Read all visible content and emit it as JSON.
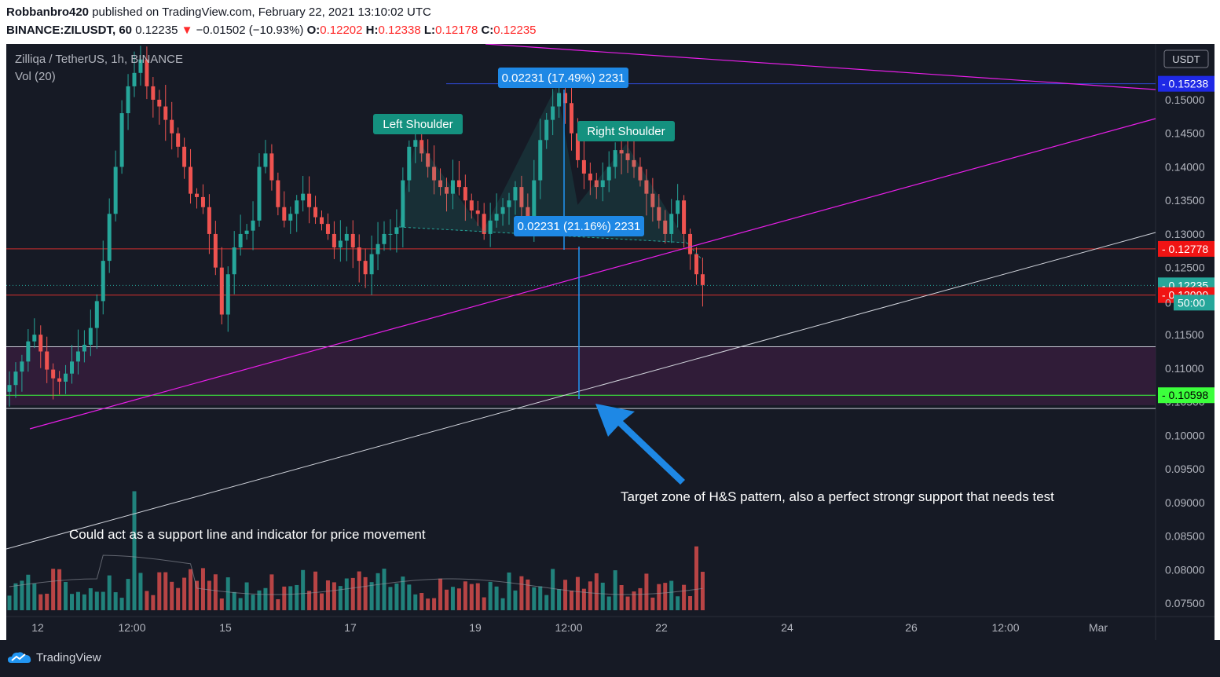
{
  "header": {
    "author": "Robbanbro420",
    "published_text": "published on TradingView.com, February 22, 2021 13:10:02 UTC",
    "symbol": "BINANCE:ZILUSDT, 60",
    "last": "0.12235",
    "change": "−0.01502 (−10.93%)",
    "o_label": "O:",
    "o": "0.12202",
    "h_label": "H:",
    "h": "0.12338",
    "l_label": "L:",
    "l": "0.12178",
    "c_label": "C:",
    "c": "0.12235"
  },
  "legend": {
    "title": "Zilliqa / TetherUS, 1h, BINANCE",
    "vol": "Vol (20)"
  },
  "axis": {
    "currency": "USDT",
    "price_ticks": [
      "0.15000",
      "0.14500",
      "0.14000",
      "0.13500",
      "0.13000",
      "0.12500",
      "0.11500",
      "0.11000",
      "0.10500",
      "0.10000",
      "0.09500",
      "0.09000",
      "0.08500",
      "0.08000",
      "0.07500"
    ],
    "time_ticks": [
      "12",
      "12:00",
      "15",
      "17",
      "19",
      "12:00",
      "22",
      "24",
      "26",
      "12:00",
      "Mar"
    ]
  },
  "badges": {
    "b15238": "0.15238",
    "b12778": "0.12778",
    "b12235": "0.12235",
    "countdown": "50:00",
    "countdown_prefix": "0",
    "b12090": "0.12090",
    "b10598": "0.10598"
  },
  "annotations": {
    "left_shoulder": "Left Shoulder",
    "right_shoulder": "Right Shoulder",
    "measure_top": "0.02231 (17.49%) 2231",
    "measure_mid": "0.02231 (21.16%) 2231",
    "target_note": "Target zone of H&S pattern, also a perfect strongr support that needs test",
    "support_note": "Could act as a support line and indicator for price movement"
  },
  "footer": {
    "brand": "TradingView"
  },
  "colors": {
    "background": "#161a25",
    "up": "#26a69a",
    "down": "#ef5350",
    "magenta": "#e91ee9",
    "zone": "#3a1d3f",
    "green_line": "#3cff3c",
    "blue_arrow": "#2196f3"
  },
  "chart_data": {
    "type": "candlestick",
    "title": "Zilliqa / TetherUS, 1h, BINANCE",
    "y_unit": "USDT",
    "ylim": [
      0.0735,
      0.1585
    ],
    "x_ticks": [
      "12",
      "12:00",
      "15",
      "17",
      "19",
      "12:00",
      "22",
      "24",
      "26",
      "12:00",
      "Mar"
    ],
    "levels": [
      0.15238,
      0.12778,
      0.12235,
      0.1209,
      0.10598
    ],
    "price_path": [
      [
        0,
        0.1075
      ],
      [
        1,
        0.1095
      ],
      [
        2,
        0.111
      ],
      [
        3,
        0.114
      ],
      [
        4,
        0.115
      ],
      [
        5,
        0.1125
      ],
      [
        6,
        0.1098
      ],
      [
        7,
        0.1085
      ],
      [
        8,
        0.108
      ],
      [
        9,
        0.1092
      ],
      [
        10,
        0.111
      ],
      [
        11,
        0.1125
      ],
      [
        12,
        0.1135
      ],
      [
        13,
        0.116
      ],
      [
        14,
        0.12
      ],
      [
        15,
        0.126
      ],
      [
        16,
        0.133
      ],
      [
        17,
        0.14
      ],
      [
        18,
        0.148
      ],
      [
        19,
        0.152
      ],
      [
        20,
        0.154
      ],
      [
        21,
        0.156
      ],
      [
        22,
        0.152
      ],
      [
        23,
        0.15
      ],
      [
        24,
        0.149
      ],
      [
        25,
        0.147
      ],
      [
        26,
        0.145
      ],
      [
        27,
        0.143
      ],
      [
        28,
        0.14
      ],
      [
        29,
        0.136
      ],
      [
        30,
        0.1355
      ],
      [
        31,
        0.134
      ],
      [
        32,
        0.13
      ],
      [
        33,
        0.125
      ],
      [
        34,
        0.118
      ],
      [
        35,
        0.124
      ],
      [
        36,
        0.128
      ],
      [
        37,
        0.13
      ],
      [
        38,
        0.1305
      ],
      [
        39,
        0.132
      ],
      [
        40,
        0.14
      ],
      [
        41,
        0.142
      ],
      [
        42,
        0.138
      ],
      [
        43,
        0.134
      ],
      [
        44,
        0.132
      ],
      [
        45,
        0.133
      ],
      [
        46,
        0.135
      ],
      [
        47,
        0.136
      ],
      [
        48,
        0.134
      ],
      [
        49,
        0.1325
      ],
      [
        50,
        0.1315
      ],
      [
        51,
        0.13
      ],
      [
        52,
        0.128
      ],
      [
        53,
        0.129
      ],
      [
        54,
        0.13
      ],
      [
        55,
        0.128
      ],
      [
        56,
        0.126
      ],
      [
        57,
        0.124
      ],
      [
        58,
        0.127
      ],
      [
        59,
        0.1285
      ],
      [
        60,
        0.13
      ],
      [
        61,
        0.13
      ],
      [
        62,
        0.131
      ],
      [
        63,
        0.138
      ],
      [
        64,
        0.143
      ],
      [
        65,
        0.144
      ],
      [
        66,
        0.142
      ],
      [
        67,
        0.14
      ],
      [
        68,
        0.138
      ],
      [
        69,
        0.137
      ],
      [
        70,
        0.136
      ],
      [
        71,
        0.138
      ],
      [
        72,
        0.137
      ],
      [
        73,
        0.135
      ],
      [
        74,
        0.1335
      ],
      [
        75,
        0.133
      ],
      [
        76,
        0.13
      ],
      [
        77,
        0.132
      ],
      [
        78,
        0.133
      ],
      [
        79,
        0.134
      ],
      [
        80,
        0.135
      ],
      [
        81,
        0.137
      ],
      [
        82,
        0.134
      ],
      [
        83,
        0.132
      ],
      [
        84,
        0.138
      ],
      [
        85,
        0.144
      ],
      [
        86,
        0.147
      ],
      [
        87,
        0.149
      ],
      [
        88,
        0.151
      ],
      [
        89,
        0.1495
      ],
      [
        90,
        0.145
      ],
      [
        91,
        0.141
      ],
      [
        92,
        0.139
      ],
      [
        93,
        0.138
      ],
      [
        94,
        0.137
      ],
      [
        95,
        0.138
      ],
      [
        96,
        0.14
      ],
      [
        97,
        0.1425
      ],
      [
        98,
        0.142
      ],
      [
        99,
        0.141
      ],
      [
        100,
        0.14
      ],
      [
        101,
        0.138
      ],
      [
        102,
        0.136
      ],
      [
        103,
        0.134
      ],
      [
        104,
        0.132
      ],
      [
        105,
        0.13
      ],
      [
        106,
        0.133
      ],
      [
        107,
        0.135
      ],
      [
        108,
        0.13
      ],
      [
        109,
        0.127
      ],
      [
        110,
        0.124
      ],
      [
        111,
        0.1224
      ]
    ]
  }
}
